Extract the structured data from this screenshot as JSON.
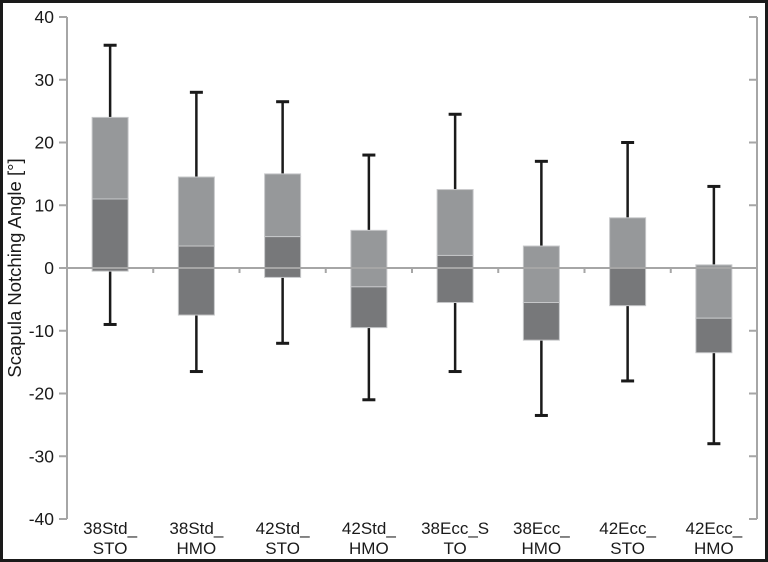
{
  "chart_data": {
    "type": "box",
    "title": "",
    "ylabel": "Scapula Notching Angle [°]",
    "xlabel": "",
    "ylim": [
      -40,
      40
    ],
    "ytick_step": 10,
    "yticks": [
      40,
      30,
      20,
      10,
      0,
      -10,
      -20,
      -30,
      -40
    ],
    "grid": "off",
    "legend": "none",
    "zero_line": 0,
    "categories": [
      "38Std_STO",
      "38Std_HMO",
      "42Std_STO",
      "42Std_HMO",
      "38Ecc_STO",
      "38Ecc_HMO",
      "42Ecc_STO",
      "42Ecc_HMO"
    ],
    "category_label_lines": [
      [
        "38Std_",
        "STO"
      ],
      [
        "38Std_",
        "HMO"
      ],
      [
        "42Std_",
        "STO"
      ],
      [
        "42Std_",
        "HMO"
      ],
      [
        "38Ecc_S",
        "TO"
      ],
      [
        "38Ecc_",
        "HMO"
      ],
      [
        "42Ecc_",
        "STO"
      ],
      [
        "42Ecc_",
        "HMO"
      ]
    ],
    "boxes": [
      {
        "label": "38Std_STO",
        "whisker_low": -9,
        "q1": -0.5,
        "median": 11,
        "q3": 24,
        "whisker_high": 35.5
      },
      {
        "label": "38Std_HMO",
        "whisker_low": -16.5,
        "q1": -7.5,
        "median": 3.5,
        "q3": 14.5,
        "whisker_high": 28
      },
      {
        "label": "42Std_STO",
        "whisker_low": -12,
        "q1": -1.5,
        "median": 5,
        "q3": 15,
        "whisker_high": 26.5
      },
      {
        "label": "42Std_HMO",
        "whisker_low": -21,
        "q1": -9.5,
        "median": -3,
        "q3": 6,
        "whisker_high": 18
      },
      {
        "label": "38Ecc_STO",
        "whisker_low": -16.5,
        "q1": -5.5,
        "median": 2,
        "q3": 12.5,
        "whisker_high": 24.5
      },
      {
        "label": "38Ecc_HMO",
        "whisker_low": -23.5,
        "q1": -11.5,
        "median": -5.5,
        "q3": 3.5,
        "whisker_high": 17
      },
      {
        "label": "42Ecc_STO",
        "whisker_low": -18,
        "q1": -6,
        "median": 0,
        "q3": 8,
        "whisker_high": 20
      },
      {
        "label": "42Ecc_HMO",
        "whisker_low": -28,
        "q1": -13.5,
        "median": -8,
        "q3": 0.5,
        "whisker_high": 13
      }
    ],
    "colors": {
      "box_upper": "#96989a",
      "box_lower": "#77787a",
      "box_border": "#c6c7c9",
      "whisker": "#1a1a1a",
      "axis": "#a6a6a6",
      "text": "#1a1a1a",
      "frame_border": "#1a1a1a",
      "background": "#ffffff"
    }
  }
}
